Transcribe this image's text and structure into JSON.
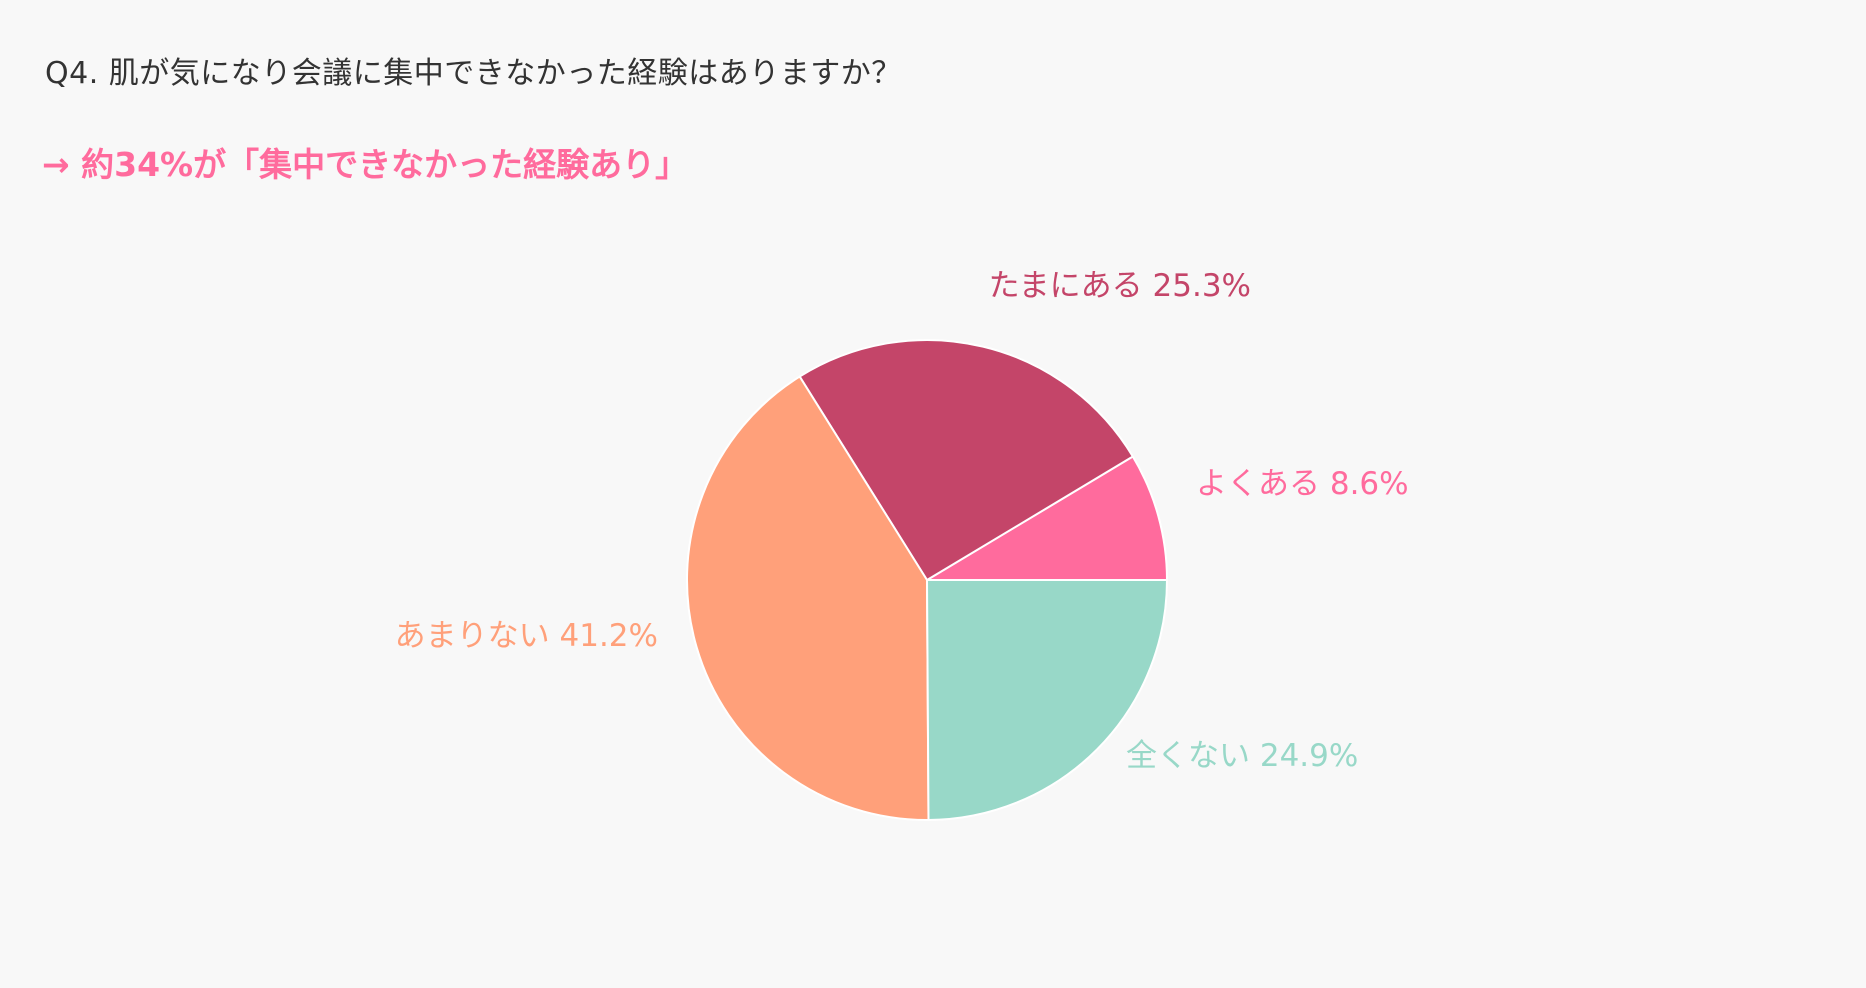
{
  "question": "Q4. 肌が気になり会議に集中できなかった経験はありますか？",
  "headline": "→ 約34%が「集中できなかった経験あり」",
  "chart_data": {
    "type": "pie",
    "unit": "%",
    "slices": [
      {
        "label": "よくある",
        "value": 8.6,
        "color": "#ff6b9d",
        "text": "よくある 8.6%"
      },
      {
        "label": "たまにある",
        "value": 25.3,
        "color": "#c44569",
        "text": "たまにある 25.3%"
      },
      {
        "label": "あまりない",
        "value": 41.2,
        "color": "#ffa07a",
        "text": "あまりない 41.2%"
      },
      {
        "label": "全くない",
        "value": 24.9,
        "color": "#98d8c8",
        "text": "全くない 24.9%"
      }
    ],
    "start": "3 o'clock",
    "direction": "counterclockwise",
    "slice_border": "#ffffff"
  }
}
